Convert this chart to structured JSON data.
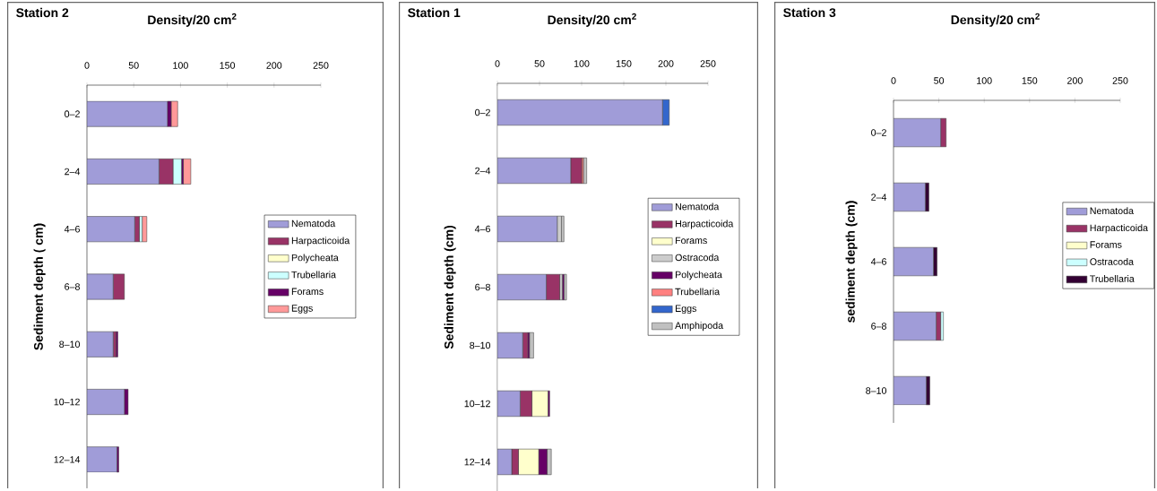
{
  "chart_data": [
    {
      "type": "bar",
      "orientation": "horizontal",
      "stacked": true,
      "title": "Station 2",
      "xlabel": "Density/20 cm$^{2}$",
      "ylabel": "Sediment depth ( cm)",
      "legend": "right",
      "categories": [
        "0–2",
        "2–4",
        "4–6",
        "6–8",
        "8–10",
        "10–12",
        "12–14"
      ],
      "xlim": [
        0,
        250
      ],
      "xticks": [
        0,
        50,
        100,
        150,
        200,
        250
      ],
      "series": [
        {
          "name": "Nematoda",
          "color": "#a09cd8",
          "values": [
            86,
            77,
            51,
            28,
            28,
            40,
            32
          ]
        },
        {
          "name": "Harpacticoida",
          "color": "#993366",
          "values": [
            null,
            15,
            5,
            12,
            3,
            null,
            null
          ]
        },
        {
          "name": "Polycheata",
          "color": "#ffffcc",
          "values": [
            null,
            null,
            null,
            null,
            null,
            null,
            null
          ]
        },
        {
          "name": "Trubellaria",
          "color": "#ccffff",
          "values": [
            null,
            9,
            3,
            null,
            null,
            null,
            null
          ]
        },
        {
          "name": "Forams",
          "color": "#660066",
          "values": [
            4,
            2,
            null,
            null,
            2,
            4,
            2
          ]
        },
        {
          "name": "Eggs",
          "color": "#ff9999",
          "values": [
            7,
            8,
            5,
            null,
            null,
            null,
            null
          ]
        }
      ]
    },
    {
      "type": "bar",
      "orientation": "horizontal",
      "stacked": true,
      "title": "Station 1",
      "xlabel": "Density/20 cm$^{2}$",
      "ylabel": "Sediment depth (cm)",
      "legend": "right",
      "categories": [
        "0–2",
        "2–4",
        "4–6",
        "6–8",
        "8–10",
        "10–12",
        "12–14"
      ],
      "xlim": [
        0,
        250
      ],
      "xticks": [
        0,
        50,
        100,
        150,
        200,
        250
      ],
      "series": [
        {
          "name": "Nematoda",
          "color": "#a09cd8",
          "values": [
            196,
            87,
            71,
            58,
            30,
            27,
            17
          ]
        },
        {
          "name": "Harpacticoida",
          "color": "#993366",
          "values": [
            null,
            13,
            null,
            16,
            6,
            14,
            8
          ]
        },
        {
          "name": "Forams",
          "color": "#ffffcc",
          "values": [
            null,
            null,
            null,
            null,
            null,
            19,
            24
          ]
        },
        {
          "name": "Ostracoda",
          "color": "#cccccc",
          "values": [
            null,
            null,
            5,
            3,
            null,
            null,
            null
          ]
        },
        {
          "name": "Polycheata",
          "color": "#660066",
          "values": [
            null,
            null,
            null,
            2,
            2,
            2,
            10
          ]
        },
        {
          "name": "Trubellaria",
          "color": "#ff8080",
          "values": [
            null,
            2,
            null,
            null,
            null,
            null,
            null
          ]
        },
        {
          "name": "Eggs",
          "color": "#3366cc",
          "values": [
            8,
            null,
            null,
            null,
            null,
            null,
            null
          ]
        },
        {
          "name": "Amphipoda",
          "color": "#c0c0c0",
          "values": [
            null,
            4,
            3,
            3,
            5,
            null,
            5
          ]
        }
      ]
    },
    {
      "type": "bar",
      "orientation": "horizontal",
      "stacked": true,
      "title": "Station 3",
      "xlabel": "Density/20 cm$^{2}$",
      "ylabel": "sediment depth (cm)",
      "legend": "right",
      "categories": [
        "0–2",
        "2–4",
        "4–6",
        "6–8",
        "8–10"
      ],
      "xlim": [
        0,
        250
      ],
      "xticks": [
        0,
        50,
        100,
        150,
        200,
        250
      ],
      "series": [
        {
          "name": "Nematoda",
          "color": "#a09cd8",
          "values": [
            52,
            35,
            44,
            47,
            36
          ]
        },
        {
          "name": "Harpacticoida",
          "color": "#993366",
          "values": [
            6,
            null,
            null,
            5,
            null
          ]
        },
        {
          "name": "Forams",
          "color": "#ffffcc",
          "values": [
            null,
            null,
            null,
            null,
            null
          ]
        },
        {
          "name": "Ostracoda",
          "color": "#ccffff",
          "values": [
            null,
            null,
            null,
            3,
            null
          ]
        },
        {
          "name": "Trubellaria",
          "color": "#330033",
          "values": [
            null,
            4,
            4,
            null,
            4
          ]
        }
      ]
    }
  ]
}
